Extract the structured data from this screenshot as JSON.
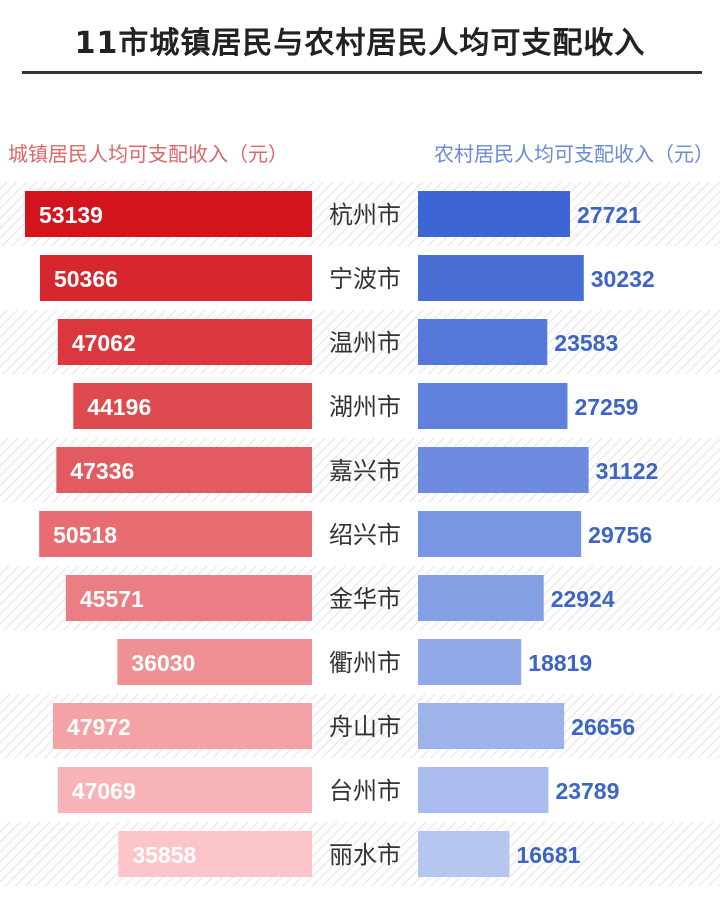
{
  "title": "11市城镇居民与农村居民人均可支配收入",
  "legend": {
    "left": "城镇居民人均可支配收入（元）",
    "right": "农村居民人均可支配收入（元）"
  },
  "colors": {
    "urban_dark": "#d3141c",
    "urban_light": "#fbc5c9",
    "rural_dark": "#3d65d4",
    "rural_light": "#b5c6f0",
    "rural_label": "#3d65c8",
    "stripe_band": "#e9e9e9"
  },
  "chart_data": {
    "type": "bar",
    "categories": [
      "杭州市",
      "宁波市",
      "温州市",
      "湖州市",
      "嘉兴市",
      "绍兴市",
      "金华市",
      "衢州市",
      "舟山市",
      "台州市",
      "丽水市"
    ],
    "series": [
      {
        "name": "城镇居民人均可支配收入（元）",
        "values": [
          53139,
          50366,
          47062,
          44196,
          47336,
          50518,
          45571,
          36030,
          47972,
          47069,
          35858
        ]
      },
      {
        "name": "农村居民人均可支配收入（元）",
        "values": [
          27721,
          30232,
          23583,
          27259,
          31122,
          29756,
          22924,
          18819,
          26656,
          23789,
          16681
        ]
      }
    ],
    "orientation": "horizontal-butterfly",
    "grid": false,
    "legend_position": "top"
  }
}
